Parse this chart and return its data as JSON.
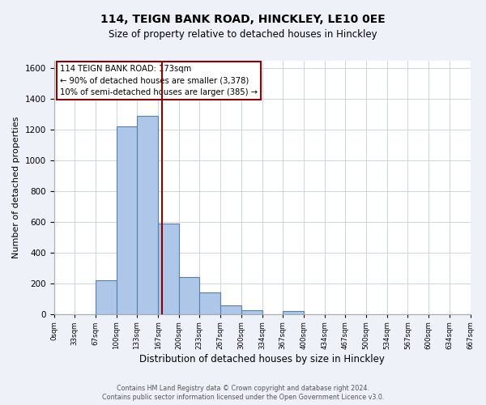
{
  "title": "114, TEIGN BANK ROAD, HINCKLEY, LE10 0EE",
  "subtitle": "Size of property relative to detached houses in Hinckley",
  "xlabel": "Distribution of detached houses by size in Hinckley",
  "ylabel": "Number of detached properties",
  "bin_edges": [
    0,
    33,
    67,
    100,
    133,
    167,
    200,
    233,
    267,
    300,
    334,
    367,
    400,
    434,
    467,
    500,
    534,
    567,
    600,
    634,
    667
  ],
  "bin_labels": [
    "0sqm",
    "33sqm",
    "67sqm",
    "100sqm",
    "133sqm",
    "167sqm",
    "200sqm",
    "233sqm",
    "267sqm",
    "300sqm",
    "334sqm",
    "367sqm",
    "400sqm",
    "434sqm",
    "467sqm",
    "500sqm",
    "534sqm",
    "567sqm",
    "600sqm",
    "634sqm",
    "667sqm"
  ],
  "counts": [
    0,
    0,
    220,
    1220,
    1290,
    590,
    240,
    140,
    55,
    25,
    0,
    18,
    0,
    0,
    0,
    0,
    0,
    0,
    0,
    0
  ],
  "bar_color": "#aec6e8",
  "bar_edge_color": "#5580b0",
  "property_size": 173,
  "vline_color": "#8b0000",
  "annotation_box_edge_color": "#8b0000",
  "annotation_line1": "114 TEIGN BANK ROAD: 173sqm",
  "annotation_line2": "← 90% of detached houses are smaller (3,378)",
  "annotation_line3": "10% of semi-detached houses are larger (385) →",
  "ylim": [
    0,
    1650
  ],
  "yticks": [
    0,
    200,
    400,
    600,
    800,
    1000,
    1200,
    1400,
    1600
  ],
  "footer_line1": "Contains HM Land Registry data © Crown copyright and database right 2024.",
  "footer_line2": "Contains public sector information licensed under the Open Government Licence v3.0.",
  "background_color": "#eef2f8",
  "plot_bg_color": "#ffffff",
  "grid_color": "#c8cdd8"
}
